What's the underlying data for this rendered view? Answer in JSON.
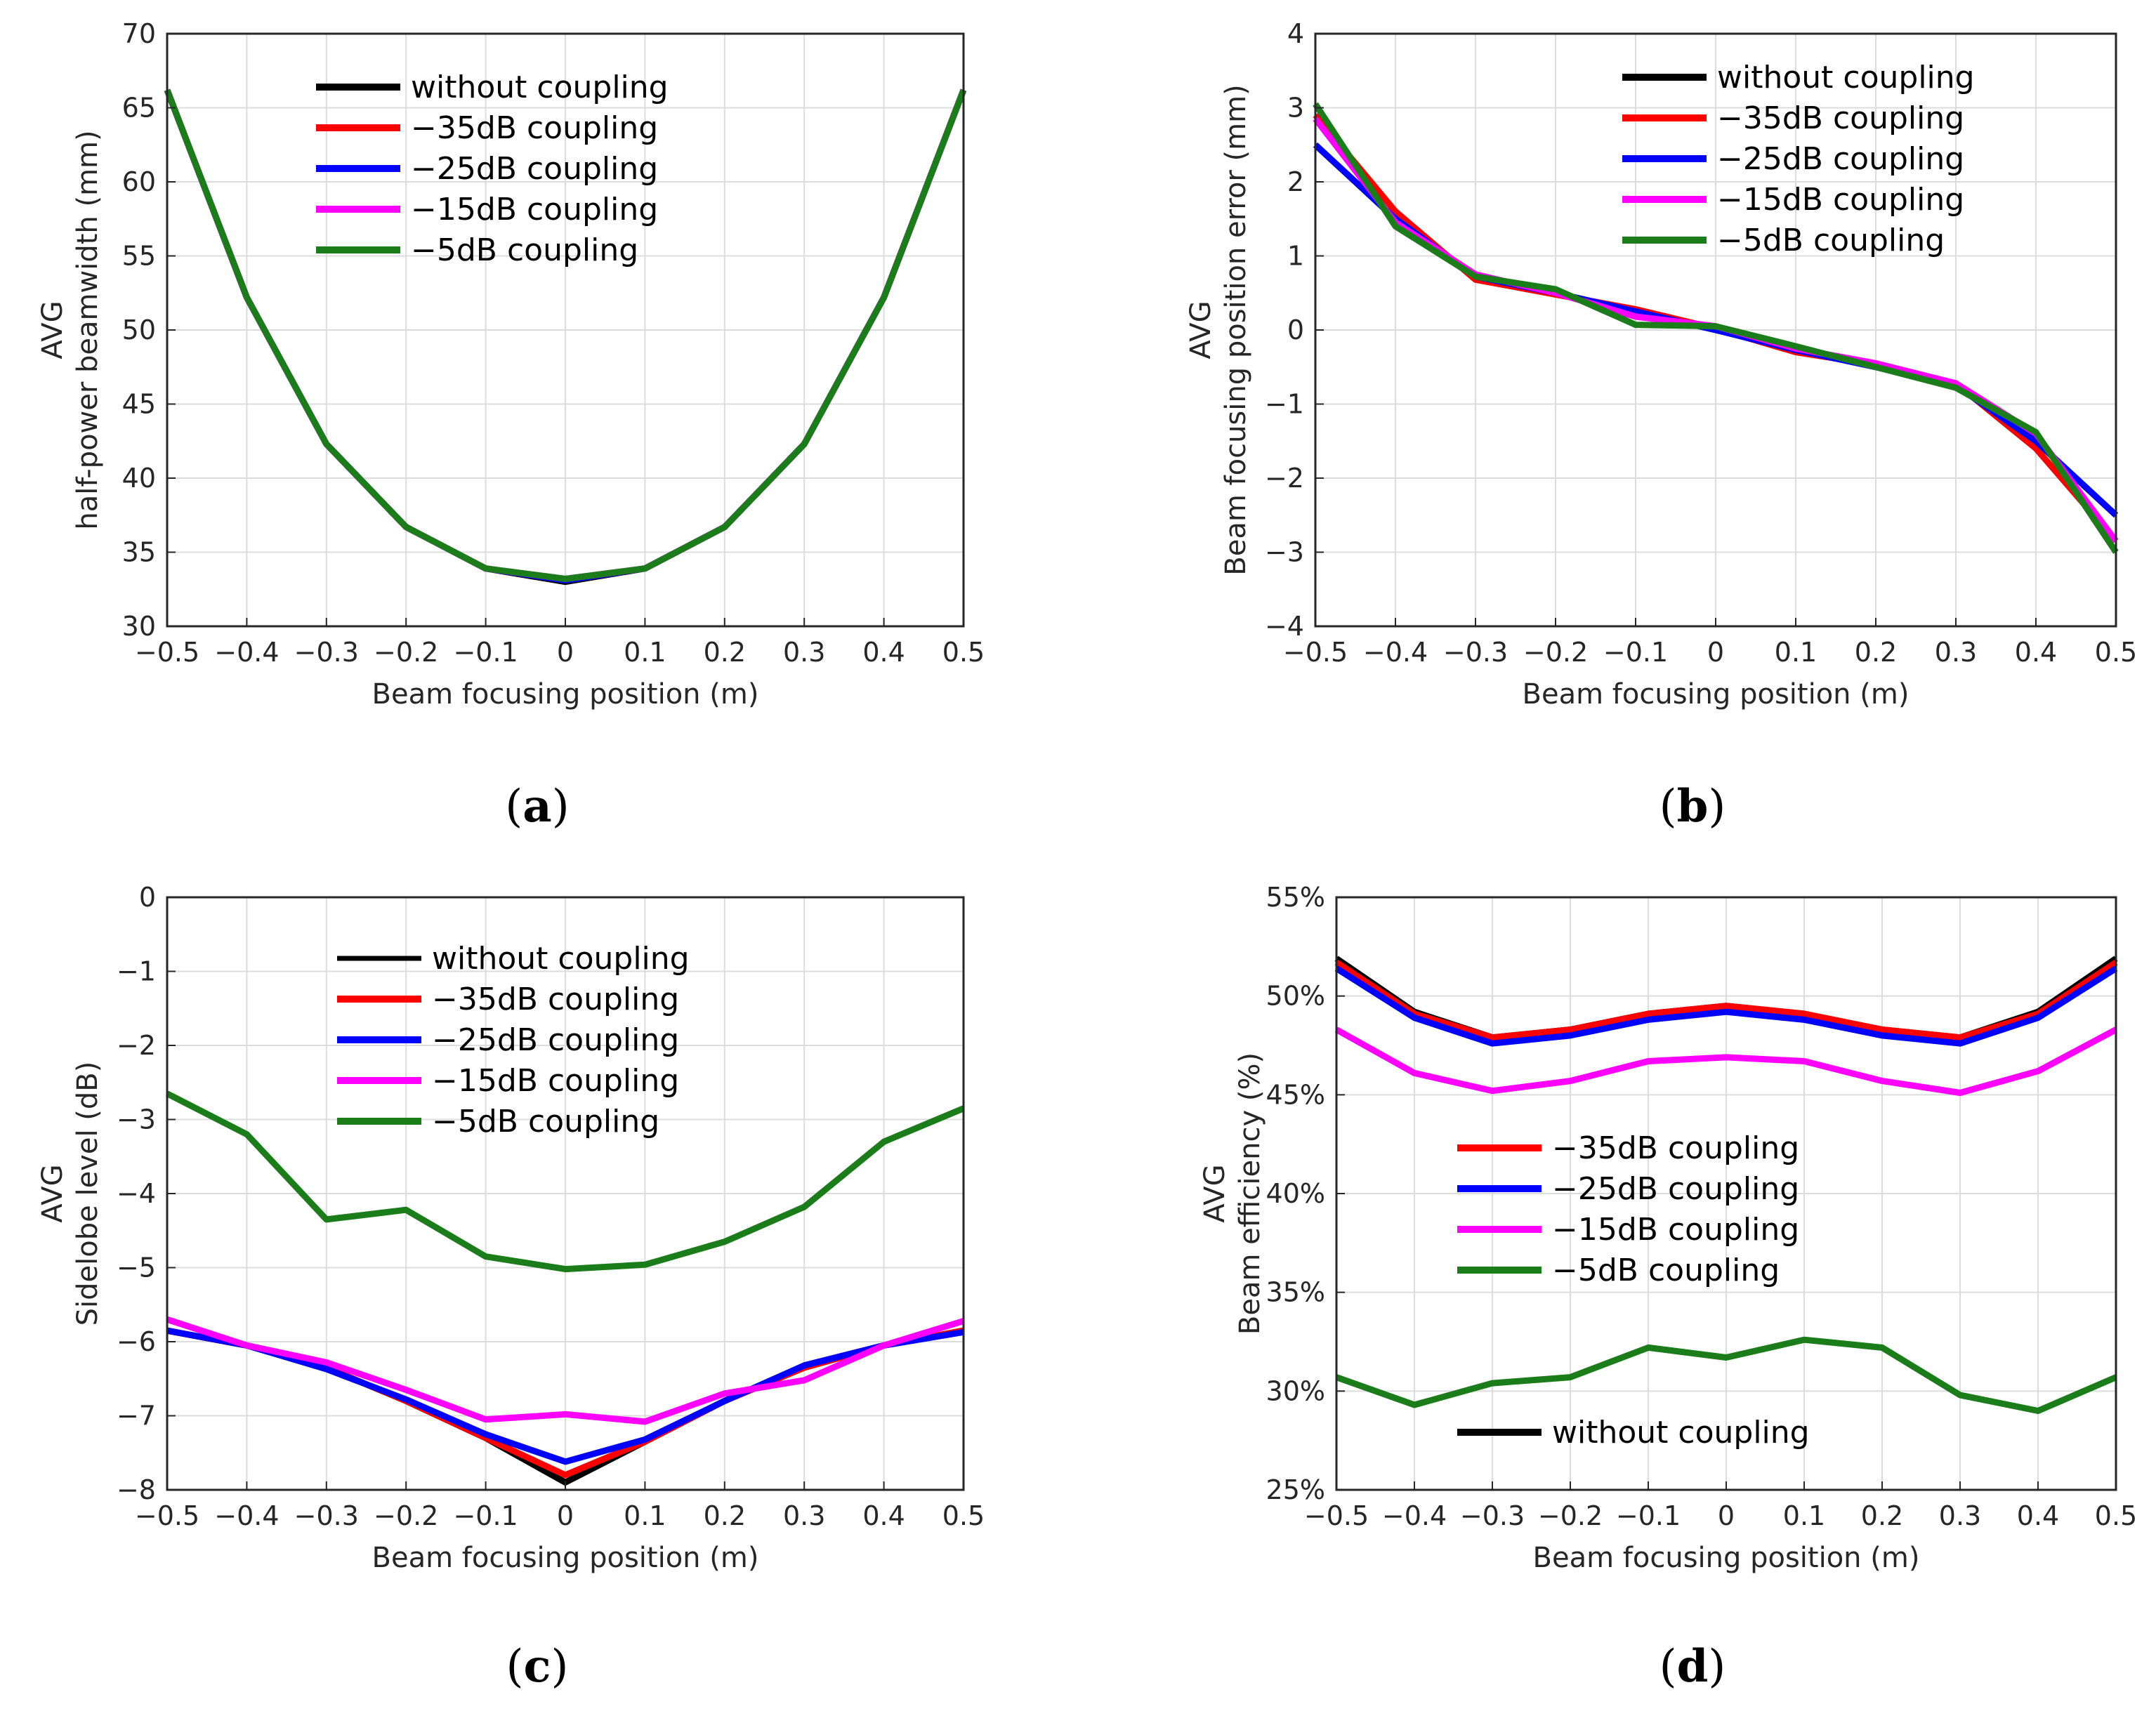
{
  "colors": {
    "without coupling": "#000000",
    "-35dB coupling": "#ff0000",
    "-25dB coupling": "#0000ff",
    "-15dB coupling": "#ff00ff",
    "-5dB coupling": "#1a7d1a",
    "grid": "#dcdcdc",
    "axis": "#262626"
  },
  "chart_data": [
    {
      "type": "line",
      "panel_label": "(a)",
      "xlabel": "Beam focusing position (m)",
      "ylabel_lines": [
        "AVG",
        "half-power beamwidth (mm)"
      ],
      "x": [
        -0.5,
        -0.4,
        -0.3,
        -0.2,
        -0.1,
        0,
        0.1,
        0.2,
        0.3,
        0.4,
        0.5
      ],
      "xticks": [
        -0.5,
        -0.4,
        -0.3,
        -0.2,
        -0.1,
        0,
        0.1,
        0.2,
        0.3,
        0.4,
        0.5
      ],
      "xtick_labels": [
        "−0.5",
        "−0.4",
        "−0.3",
        "−0.2",
        "−0.1",
        "0",
        "0.1",
        "0.2",
        "0.3",
        "0.4",
        "0.5"
      ],
      "xlim": [
        -0.5,
        0.5
      ],
      "ylim": [
        30,
        70
      ],
      "yticks": [
        30,
        35,
        40,
        45,
        50,
        55,
        60,
        65,
        70
      ],
      "ytick_labels": [
        "30",
        "35",
        "40",
        "45",
        "50",
        "55",
        "60",
        "65",
        "70"
      ],
      "legend_position": "top-center",
      "legend": [
        "without coupling",
        "−35dB coupling",
        "−25dB coupling",
        "−15dB coupling",
        "−5dB coupling"
      ],
      "series": [
        {
          "name": "without coupling",
          "values": [
            66.2,
            52.2,
            42.3,
            36.7,
            33.9,
            33.0,
            33.9,
            36.7,
            42.3,
            52.2,
            66.2
          ]
        },
        {
          "name": "-35dB coupling",
          "values": [
            66.2,
            52.2,
            42.3,
            36.7,
            33.9,
            33.1,
            33.9,
            36.7,
            42.3,
            52.2,
            66.2
          ]
        },
        {
          "name": "-25dB coupling",
          "values": [
            66.2,
            52.2,
            42.3,
            36.7,
            33.9,
            33.1,
            33.9,
            36.7,
            42.3,
            52.2,
            66.2
          ]
        },
        {
          "name": "-15dB coupling",
          "values": [
            66.2,
            52.2,
            42.3,
            36.7,
            33.9,
            33.2,
            33.9,
            36.7,
            42.3,
            52.2,
            66.2
          ]
        },
        {
          "name": "-5dB coupling",
          "values": [
            66.2,
            52.2,
            42.3,
            36.7,
            33.9,
            33.2,
            33.9,
            36.7,
            42.3,
            52.2,
            66.2
          ]
        }
      ]
    },
    {
      "type": "line",
      "panel_label": "(b)",
      "xlabel": "Beam focusing position (m)",
      "ylabel_lines": [
        "AVG",
        "Beam focusing position error (mm)"
      ],
      "x": [
        -0.5,
        -0.4,
        -0.3,
        -0.2,
        -0.1,
        0,
        0.1,
        0.2,
        0.3,
        0.4,
        0.5
      ],
      "xticks": [
        -0.5,
        -0.4,
        -0.3,
        -0.2,
        -0.1,
        0,
        0.1,
        0.2,
        0.3,
        0.4,
        0.5
      ],
      "xtick_labels": [
        "−0.5",
        "−0.4",
        "−0.3",
        "−0.2",
        "−0.1",
        "0",
        "0.1",
        "0.2",
        "0.3",
        "0.4",
        "0.5"
      ],
      "xlim": [
        -0.5,
        0.5
      ],
      "ylim": [
        -4,
        4
      ],
      "yticks": [
        -4,
        -3,
        -2,
        -1,
        0,
        1,
        2,
        3,
        4
      ],
      "ytick_labels": [
        "−4",
        "−3",
        "−2",
        "−1",
        "0",
        "1",
        "2",
        "3",
        "4"
      ],
      "legend_position": "top-right",
      "legend": [
        "without coupling",
        "−35dB coupling",
        "−25dB coupling",
        "−15dB coupling",
        "−5dB coupling"
      ],
      "series": [
        {
          "name": "without coupling",
          "values": [
            2.5,
            1.5,
            0.72,
            0.5,
            0.25,
            0.0,
            -0.25,
            -0.5,
            -0.72,
            -1.5,
            -2.5
          ]
        },
        {
          "name": "-35dB coupling",
          "values": [
            2.9,
            1.6,
            0.68,
            0.48,
            0.28,
            0.02,
            -0.3,
            -0.47,
            -0.72,
            -1.6,
            -2.85
          ]
        },
        {
          "name": "-25dB coupling",
          "values": [
            2.5,
            1.5,
            0.72,
            0.5,
            0.25,
            0.0,
            -0.27,
            -0.5,
            -0.75,
            -1.5,
            -2.5
          ]
        },
        {
          "name": "-15dB coupling",
          "values": [
            2.85,
            1.45,
            0.75,
            0.5,
            0.18,
            0.05,
            -0.25,
            -0.45,
            -0.72,
            -1.4,
            -2.85
          ]
        },
        {
          "name": "-5dB coupling",
          "values": [
            3.05,
            1.4,
            0.72,
            0.55,
            0.07,
            0.05,
            -0.22,
            -0.5,
            -0.78,
            -1.38,
            -3.0
          ]
        }
      ]
    },
    {
      "type": "line",
      "panel_label": "(c)",
      "xlabel": "Beam focusing position (m)",
      "ylabel_lines": [
        "AVG",
        "Sidelobe level (dB)"
      ],
      "x": [
        -0.5,
        -0.4,
        -0.3,
        -0.2,
        -0.1,
        0,
        0.1,
        0.2,
        0.3,
        0.4,
        0.5
      ],
      "xticks": [
        -0.5,
        -0.4,
        -0.3,
        -0.2,
        -0.1,
        0,
        0.1,
        0.2,
        0.3,
        0.4,
        0.5
      ],
      "xtick_labels": [
        "−0.5",
        "−0.4",
        "−0.3",
        "−0.2",
        "−0.1",
        "0",
        "0.1",
        "0.2",
        "0.3",
        "0.4",
        "0.5"
      ],
      "xlim": [
        -0.5,
        0.5
      ],
      "ylim": [
        -8,
        0
      ],
      "yticks": [
        -8,
        -7,
        -6,
        -5,
        -4,
        -3,
        -2,
        -1,
        0
      ],
      "ytick_labels": [
        "−8",
        "−7",
        "−6",
        "−5",
        "−4",
        "−3",
        "−2",
        "−1",
        "0"
      ],
      "legend_position": "top-center",
      "legend": [
        "without coupling",
        "−35dB coupling",
        "−25dB coupling",
        "−15dB coupling",
        "−5dB coupling"
      ],
      "series": [
        {
          "name": "without coupling",
          "values": [
            -5.85,
            -6.05,
            -6.35,
            -6.8,
            -7.3,
            -7.9,
            -7.35,
            -6.8,
            -6.35,
            -6.05,
            -5.85
          ]
        },
        {
          "name": "-35dB coupling",
          "values": [
            -5.85,
            -6.05,
            -6.35,
            -6.8,
            -7.3,
            -7.8,
            -7.35,
            -6.8,
            -6.35,
            -6.05,
            -5.85
          ]
        },
        {
          "name": "-25dB coupling",
          "values": [
            -5.85,
            -6.05,
            -6.37,
            -6.78,
            -7.25,
            -7.62,
            -7.32,
            -6.8,
            -6.32,
            -6.05,
            -5.87
          ]
        },
        {
          "name": "-15dB coupling",
          "values": [
            -5.7,
            -6.05,
            -6.28,
            -6.65,
            -7.05,
            -6.98,
            -7.08,
            -6.7,
            -6.52,
            -6.05,
            -5.72
          ]
        },
        {
          "name": "-5dB coupling",
          "values": [
            -2.65,
            -3.2,
            -4.35,
            -4.22,
            -4.85,
            -5.02,
            -4.96,
            -4.65,
            -4.18,
            -3.3,
            -2.85
          ]
        }
      ]
    },
    {
      "type": "line",
      "panel_label": "(d)",
      "xlabel": "Beam focusing position (m)",
      "ylabel_lines": [
        "AVG",
        "Beam efficiency (%)"
      ],
      "x": [
        -0.5,
        -0.4,
        -0.3,
        -0.2,
        -0.1,
        0,
        0.1,
        0.2,
        0.3,
        0.4,
        0.5
      ],
      "xticks": [
        -0.5,
        -0.4,
        -0.3,
        -0.2,
        -0.1,
        0,
        0.1,
        0.2,
        0.3,
        0.4,
        0.5
      ],
      "xtick_labels": [
        "−0.5",
        "−0.4",
        "−0.3",
        "−0.2",
        "−0.1",
        "0",
        "0.1",
        "0.2",
        "0.3",
        "0.4",
        "0.5"
      ],
      "xlim": [
        -0.5,
        0.5
      ],
      "ylim": [
        25,
        55
      ],
      "yticks": [
        25,
        30,
        35,
        40,
        45,
        50,
        55
      ],
      "ytick_labels": [
        "25%",
        "30%",
        "35%",
        "40%",
        "45%",
        "50%",
        "55%"
      ],
      "legend_position": "center",
      "legend": [
        "−35dB coupling",
        "−25dB coupling",
        "−15dB coupling",
        "−5dB coupling"
      ],
      "legend2_position": "bottom-center",
      "legend2": [
        "without coupling"
      ],
      "series": [
        {
          "name": "without coupling",
          "values": [
            51.9,
            49.2,
            47.9,
            48.3,
            49.1,
            49.5,
            49.1,
            48.3,
            47.9,
            49.2,
            51.9
          ]
        },
        {
          "name": "-35dB coupling",
          "values": [
            51.7,
            49.1,
            47.9,
            48.3,
            49.1,
            49.5,
            49.1,
            48.3,
            47.9,
            49.1,
            51.7
          ]
        },
        {
          "name": "-25dB coupling",
          "values": [
            51.4,
            48.9,
            47.6,
            48.0,
            48.8,
            49.2,
            48.8,
            48.0,
            47.6,
            48.9,
            51.4
          ]
        },
        {
          "name": "-15dB coupling",
          "values": [
            48.3,
            46.1,
            45.2,
            45.7,
            46.7,
            46.9,
            46.7,
            45.7,
            45.1,
            46.2,
            48.3
          ]
        },
        {
          "name": "-5dB coupling",
          "values": [
            30.7,
            29.3,
            30.4,
            30.7,
            32.2,
            31.7,
            32.6,
            32.2,
            29.8,
            29.0,
            30.7
          ]
        }
      ]
    }
  ]
}
